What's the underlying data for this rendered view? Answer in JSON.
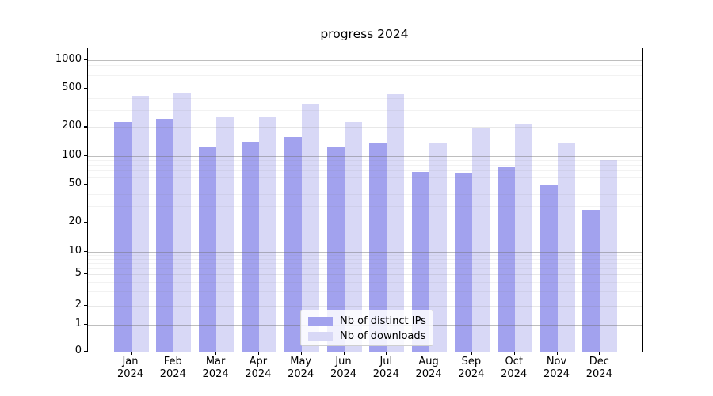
{
  "title": "progress 2024",
  "legend": {
    "items": [
      {
        "label": "Nb of distinct IPs",
        "color": "#a2a2ee"
      },
      {
        "label": "Nb of downloads",
        "color": "#d8d8f6"
      }
    ]
  },
  "y_axis": {
    "tick_values": [
      0,
      1,
      2,
      5,
      10,
      20,
      50,
      100,
      200,
      500,
      1000
    ],
    "tick_labels": [
      "0",
      "1",
      "2",
      "5",
      "10",
      "20",
      "50",
      "100",
      "200",
      "500",
      "1000"
    ]
  },
  "x_axis": {
    "months": [
      "Jan",
      "Feb",
      "Mar",
      "Apr",
      "May",
      "Jun",
      "Jul",
      "Aug",
      "Sep",
      "Oct",
      "Nov",
      "Dec"
    ],
    "year": "2024"
  },
  "chart_data": {
    "type": "bar",
    "title": "progress 2024",
    "categories": [
      "Jan 2024",
      "Feb 2024",
      "Mar 2024",
      "Apr 2024",
      "May 2024",
      "Jun 2024",
      "Jul 2024",
      "Aug 2024",
      "Sep 2024",
      "Oct 2024",
      "Nov 2024",
      "Dec 2024"
    ],
    "series": [
      {
        "name": "Nb of distinct IPs",
        "color": "#a2a2ee",
        "values": [
          225,
          243,
          123,
          139,
          158,
          123,
          134,
          68,
          66,
          76,
          50,
          27
        ]
      },
      {
        "name": "Nb of downloads",
        "color": "#d8d8f6",
        "values": [
          422,
          455,
          253,
          253,
          353,
          227,
          443,
          137,
          198,
          213,
          138,
          90
        ]
      }
    ],
    "xlabel": "",
    "ylabel": "",
    "yscale": "symlog",
    "ylim": [
      0,
      1330
    ],
    "yticks": [
      0,
      1,
      2,
      5,
      10,
      20,
      50,
      100,
      200,
      500,
      1000
    ],
    "grid": true,
    "minor_grid": true,
    "legend_position": "lower center"
  }
}
